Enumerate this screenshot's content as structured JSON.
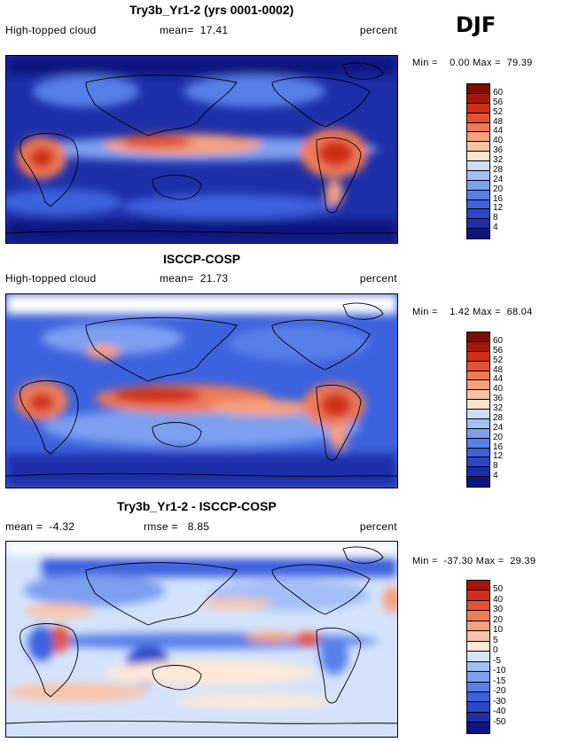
{
  "season": "DJF",
  "colors": {
    "positive_scale": [
      "#0d1680",
      "#1d2fa8",
      "#2a47c8",
      "#3d62de",
      "#587fe8",
      "#7c9ff0",
      "#a4bff6",
      "#cddcf9",
      "#fbe4cc",
      "#fbc3a6",
      "#f6a07e",
      "#ef7a58",
      "#e45235",
      "#cf2f18",
      "#a41708",
      "#7c0c04"
    ],
    "diff_scale": [
      "#0d1680",
      "#1d2fa8",
      "#2a47c8",
      "#3d62de",
      "#587fe8",
      "#7c9ff0",
      "#a4bff6",
      "#d4e3fb",
      "#fde8d6",
      "#fbc3a6",
      "#f6a07e",
      "#ef7a58",
      "#e45235",
      "#cf2f18",
      "#a41708",
      "#7c0c04"
    ]
  },
  "panels": [
    {
      "title": "Try3b_Yr1-2 (yrs 0001-0002)",
      "left_label": "High-topped cloud",
      "center_label": "mean=  17.41",
      "right_label": "percent",
      "minmax": "Min =    0.00 Max =  79.39",
      "ticks": [
        "60",
        "56",
        "52",
        "48",
        "44",
        "40",
        "36",
        "32",
        "28",
        "24",
        "20",
        "16",
        "12",
        "8",
        "4"
      ]
    },
    {
      "title": "ISCCP-COSP",
      "left_label": "High-topped cloud",
      "center_label": "mean=  21.73",
      "right_label": "percent",
      "minmax": "Min =    1.42 Max =  68.04",
      "ticks": [
        "60",
        "56",
        "52",
        "48",
        "44",
        "40",
        "36",
        "32",
        "28",
        "24",
        "20",
        "16",
        "12",
        "8",
        "4"
      ]
    },
    {
      "title": "Try3b_Yr1-2 - ISCCP-COSP",
      "left_label": "mean =  -4.32",
      "center_label": "rmse =   8.85",
      "right_label": "percent",
      "minmax": "Min =  -37.30 Max =  29.39",
      "ticks": [
        "50",
        "40",
        "30",
        "20",
        "10",
        "5",
        "0",
        "-5",
        "-10",
        "-15",
        "-20",
        "-30",
        "-40",
        "-50"
      ]
    }
  ]
}
